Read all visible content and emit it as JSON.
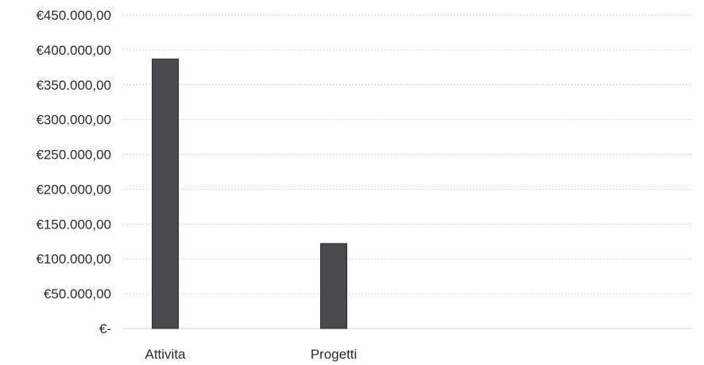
{
  "chart_data": {
    "type": "bar",
    "categories": [
      "Attivita",
      "Progetti"
    ],
    "values": [
      387000,
      122000
    ],
    "title": "",
    "xlabel": "",
    "ylabel": "",
    "ylim": [
      0,
      450000
    ],
    "y_ticks": [
      {
        "value": 450000,
        "label": "€450.000,00"
      },
      {
        "value": 400000,
        "label": "€400.000,00"
      },
      {
        "value": 350000,
        "label": "€350.000,00"
      },
      {
        "value": 300000,
        "label": "€300.000,00"
      },
      {
        "value": 250000,
        "label": "€250.000,00"
      },
      {
        "value": 200000,
        "label": "€200.000,00"
      },
      {
        "value": 150000,
        "label": "€150.000,00"
      },
      {
        "value": 100000,
        "label": "€100.000,00"
      },
      {
        "value": 50000,
        "label": "€50.000,00"
      },
      {
        "value": 0,
        "label": "€-"
      }
    ],
    "grid": true,
    "legend": "none",
    "colors": {
      "bar": "#4a4a4e",
      "bar_edge": "#2e2e30",
      "grid": "#d2d2d2",
      "text": "#2b2b2b"
    }
  }
}
